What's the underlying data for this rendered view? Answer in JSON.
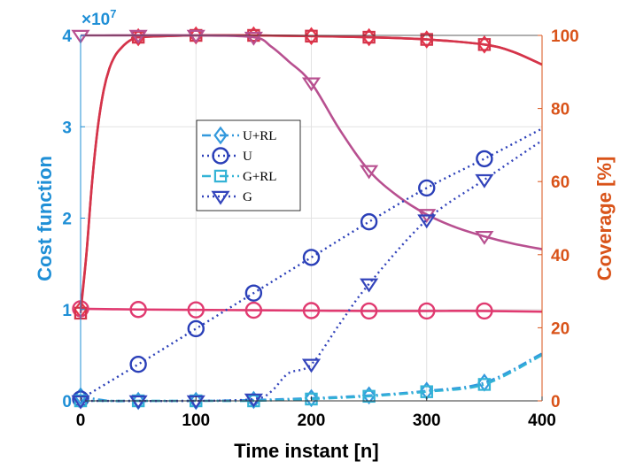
{
  "chart_data": {
    "type": "line",
    "title": "",
    "xlabel": "Time instant [n]",
    "ylabel_left": "Cost function",
    "ylabel_right": "Coverage [%]",
    "x_ticks": [
      "0",
      "100",
      "200",
      "300",
      "400"
    ],
    "y_left_ticks": [
      "0",
      "1",
      "2",
      "3",
      "4"
    ],
    "y_left_exponent": "×10",
    "y_left_exponent_power": "7",
    "y_right_ticks": [
      "0",
      "20",
      "40",
      "60",
      "80",
      "100"
    ],
    "xlim": [
      0,
      400
    ],
    "ylim_left": [
      0,
      4
    ],
    "ylim_right": [
      0,
      100
    ],
    "grid": true,
    "legend_position": "center-left",
    "colors": {
      "left_axis": "#1f8fd6",
      "right_axis": "#d95319",
      "u_rl": "#3399dd",
      "u": "#2a3fb8",
      "g_rl": "#33b3d6",
      "g": "#3344bb",
      "cov_u_rl": "#e8344a",
      "cov_u": "#e03a70",
      "cov_g_rl": "#d4344a",
      "cov_g": "#b85090"
    },
    "cost_series": [
      {
        "name": "U+RL",
        "marker": "diamond",
        "style": "dash-dot",
        "x": [
          0,
          25,
          50,
          100,
          150,
          200,
          250,
          300,
          350,
          400
        ],
        "y": [
          0.05,
          0.0,
          0.0,
          0.0,
          0.01,
          0.03,
          0.06,
          0.11,
          0.2,
          0.52
        ],
        "marker_x": [
          0,
          50,
          100,
          150,
          200,
          250,
          300,
          350
        ]
      },
      {
        "name": "U",
        "marker": "circle",
        "style": "dotted",
        "x": [
          0,
          50,
          100,
          150,
          200,
          250,
          300,
          350,
          400
        ],
        "y": [
          0.02,
          0.4,
          0.79,
          1.18,
          1.57,
          1.96,
          2.33,
          2.65,
          2.98
        ],
        "marker_x": [
          0,
          50,
          100,
          150,
          200,
          250,
          300,
          350
        ]
      },
      {
        "name": "G+RL",
        "marker": "square",
        "style": "dash-dot",
        "x": [
          0,
          50,
          100,
          150,
          200,
          250,
          300,
          350,
          400
        ],
        "y": [
          0.0,
          0.0,
          0.0,
          0.0,
          0.02,
          0.05,
          0.1,
          0.18,
          0.5
        ],
        "marker_x": [
          0,
          50,
          100,
          150,
          200,
          250,
          300,
          350
        ]
      },
      {
        "name": "G",
        "marker": "triangle-down",
        "style": "dotted",
        "x": [
          0,
          100,
          150,
          165,
          180,
          200,
          225,
          250,
          300,
          350,
          400
        ],
        "y": [
          0.0,
          0.0,
          0.02,
          0.1,
          0.3,
          0.4,
          0.85,
          1.28,
          1.98,
          2.42,
          2.85
        ],
        "marker_x": [
          0,
          50,
          100,
          150,
          200,
          250,
          300,
          350
        ]
      }
    ],
    "coverage_series": [
      {
        "name": "U+RL coverage",
        "marker": "diamond",
        "x": [
          0,
          5,
          10,
          15,
          20,
          25,
          30,
          35,
          40,
          45,
          50,
          100,
          150,
          200,
          250,
          300,
          350,
          375,
          400
        ],
        "y": [
          25,
          40,
          60,
          75,
          85,
          91,
          94.5,
          96.5,
          98,
          99,
          99.5,
          100,
          100,
          99.8,
          99.5,
          98.9,
          97.5,
          95.5,
          92
        ],
        "marker_x": [
          0,
          50,
          100,
          150,
          200,
          250,
          300,
          350
        ]
      },
      {
        "name": "U coverage",
        "marker": "circle",
        "x": [
          0,
          50,
          100,
          150,
          200,
          250,
          300,
          350,
          400
        ],
        "y": [
          25.2,
          25,
          24.9,
          24.8,
          24.7,
          24.6,
          24.6,
          24.6,
          24.4
        ],
        "marker_x": [
          0,
          50,
          100,
          150,
          200,
          250,
          300,
          350
        ]
      },
      {
        "name": "G+RL coverage",
        "marker": "square",
        "x": [
          0,
          5,
          10,
          15,
          20,
          25,
          30,
          35,
          40,
          45,
          50,
          100,
          150,
          200,
          250,
          300,
          350,
          375,
          400
        ],
        "y": [
          24,
          40,
          60,
          75,
          85,
          91,
          94.5,
          96.5,
          98,
          99,
          99.5,
          100,
          100,
          99.8,
          99.5,
          98.9,
          97.5,
          95.5,
          92
        ],
        "marker_x": [
          0,
          50,
          100,
          150,
          200,
          250,
          300,
          350
        ]
      },
      {
        "name": "G coverage",
        "marker": "triangle-down",
        "x": [
          0,
          20,
          100,
          150,
          165,
          180,
          200,
          225,
          250,
          275,
          300,
          325,
          350,
          375,
          400
        ],
        "y": [
          100,
          100,
          100,
          99.5,
          97,
          93,
          87,
          74,
          63,
          56,
          51,
          47.5,
          45,
          43,
          41.5
        ],
        "marker_x": [
          0,
          50,
          100,
          150,
          200,
          250,
          300,
          350
        ]
      }
    ],
    "legend": {
      "entries": [
        {
          "label": "U+RL",
          "series": 0
        },
        {
          "label": "U",
          "series": 1
        },
        {
          "label": "G+RL",
          "series": 2
        },
        {
          "label": "G",
          "series": 3
        }
      ]
    }
  }
}
